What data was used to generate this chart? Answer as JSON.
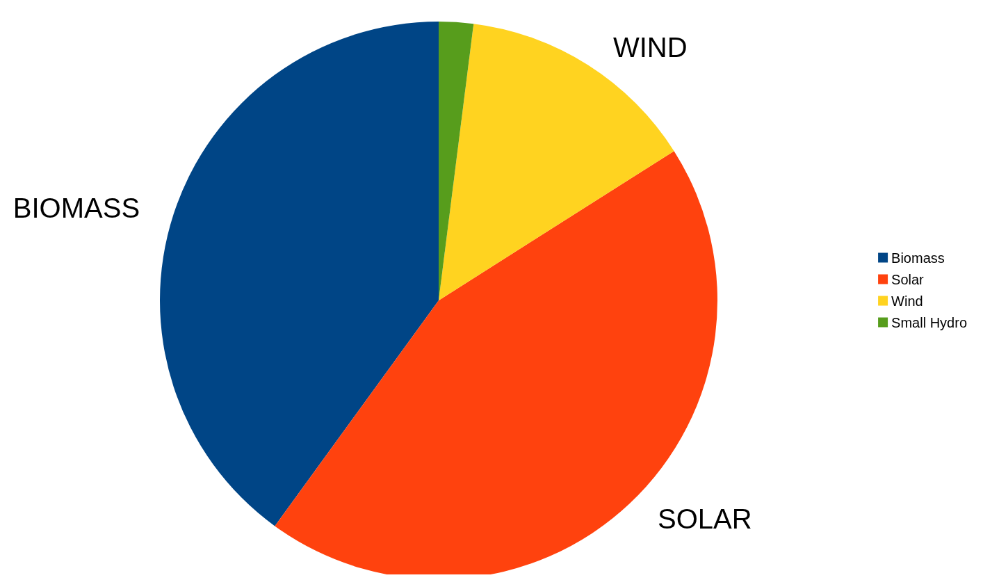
{
  "chart_data": {
    "type": "pie",
    "categories": [
      "Biomass",
      "Solar",
      "Wind",
      "Small Hydro"
    ],
    "values": [
      40,
      44,
      14,
      2
    ],
    "colors": [
      "#004586",
      "#ff420e",
      "#ffd320",
      "#579d1c"
    ],
    "value_labels": [
      "BIOMASS",
      "SOLAR",
      "WIND",
      null
    ],
    "legend": "right"
  }
}
